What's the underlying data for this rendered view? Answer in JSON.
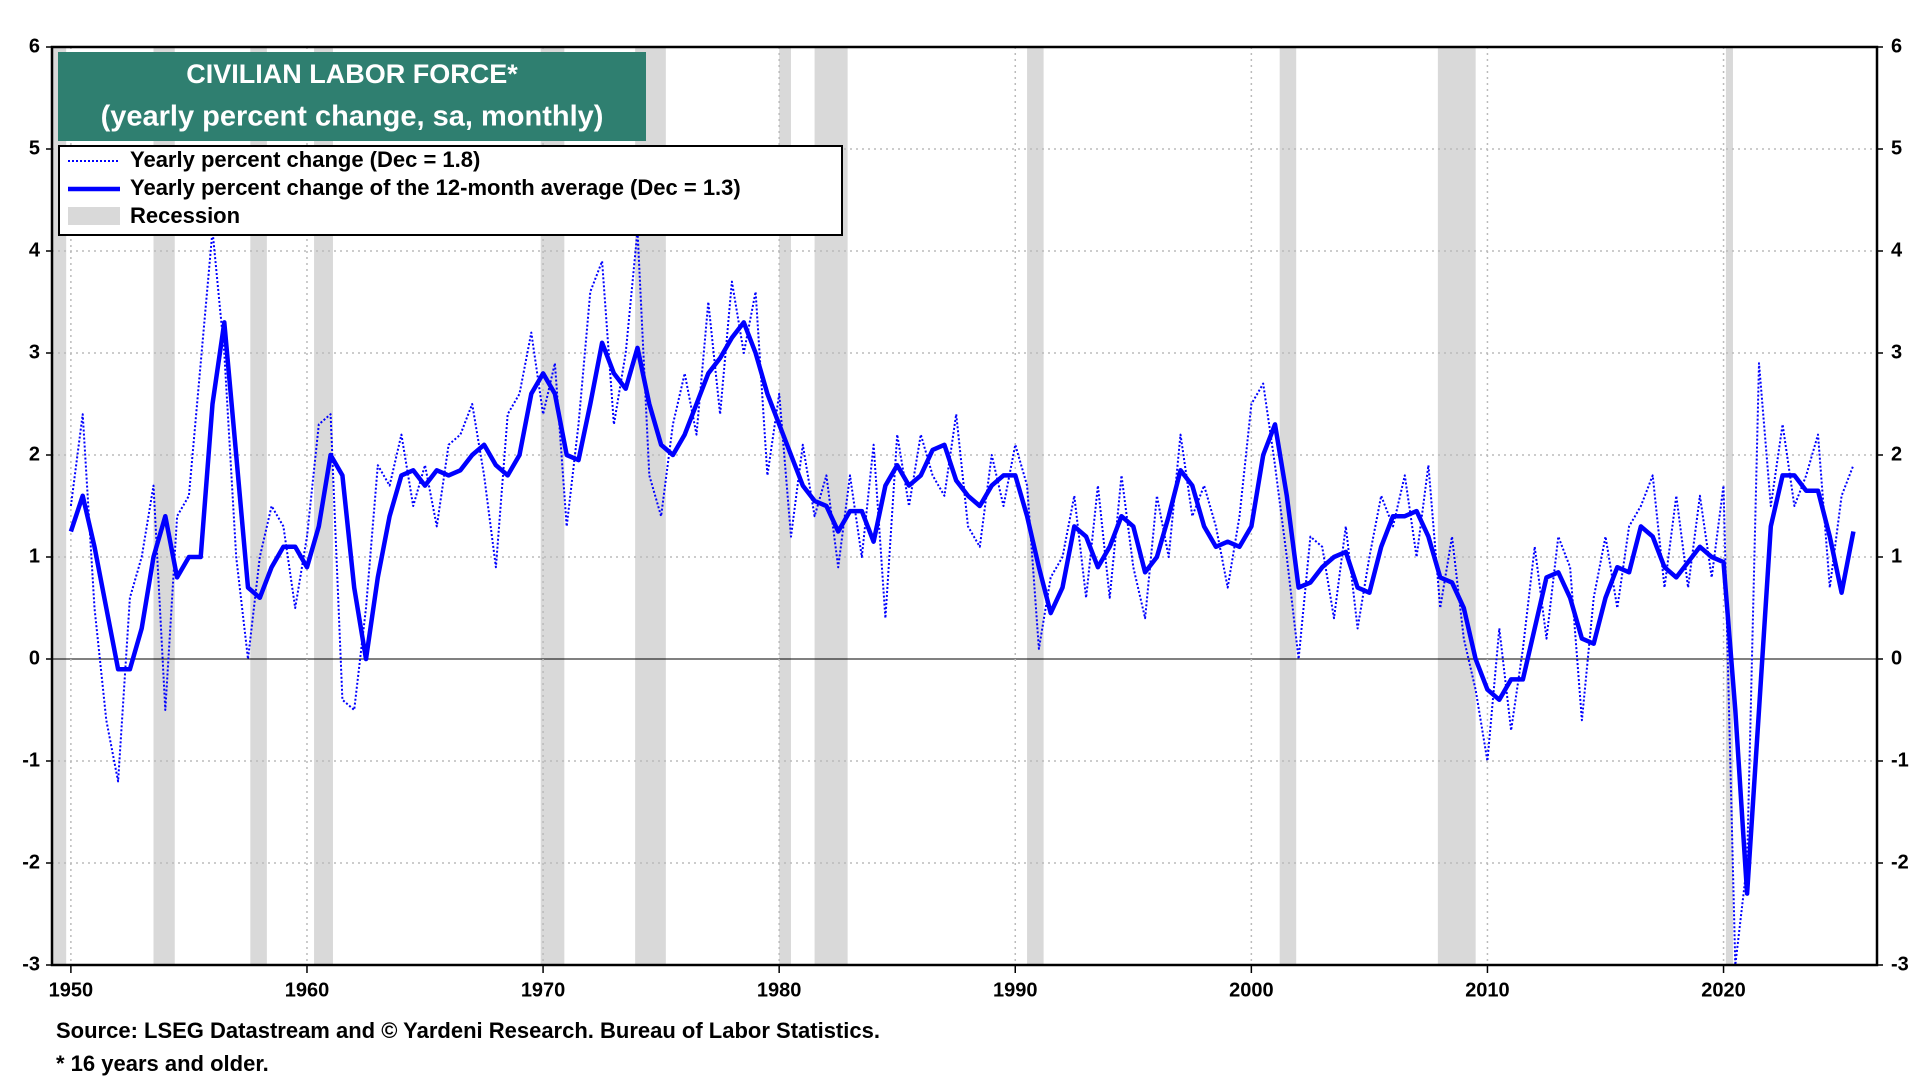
{
  "chart_data": {
    "type": "line",
    "title": [
      "CIVILIAN LABOR FORCE*",
      "(yearly percent change, sa, monthly)"
    ],
    "source": "Source: LSEG Datastream and © Yardeni Research. Bureau of Labor Statistics.",
    "note": "* 16 years and older.",
    "recession_label": "Recession",
    "recession_color": "#d9d9d9",
    "recessions": [
      [
        1948.9,
        1949.8
      ],
      [
        1953.5,
        1954.4
      ],
      [
        1957.6,
        1958.3
      ],
      [
        1960.3,
        1961.1
      ],
      [
        1969.9,
        1970.9
      ],
      [
        1973.9,
        1975.2
      ],
      [
        1980.0,
        1980.5
      ],
      [
        1981.5,
        1982.9
      ],
      [
        1990.5,
        1991.2
      ],
      [
        2001.2,
        2001.9
      ],
      [
        2007.9,
        2009.5
      ],
      [
        2020.1,
        2020.4
      ]
    ],
    "xlim": [
      1949.2,
      2026.5
    ],
    "xticks": [
      1950,
      1960,
      1970,
      1980,
      1990,
      2000,
      2010,
      2020
    ],
    "ylim": [
      -3,
      6
    ],
    "yticks": [
      -3,
      -2,
      -1,
      0,
      1,
      2,
      3,
      4,
      5,
      6
    ],
    "grid": true,
    "legend": "upper left",
    "x": [
      1950.0,
      1950.5,
      1951.0,
      1951.5,
      1952.0,
      1952.5,
      1953.0,
      1953.5,
      1954.0,
      1954.5,
      1955.0,
      1955.5,
      1956.0,
      1956.5,
      1957.0,
      1957.5,
      1958.0,
      1958.5,
      1959.0,
      1959.5,
      1960.0,
      1960.5,
      1961.0,
      1961.5,
      1962.0,
      1962.5,
      1963.0,
      1963.5,
      1964.0,
      1964.5,
      1965.0,
      1965.5,
      1966.0,
      1966.5,
      1967.0,
      1967.5,
      1968.0,
      1968.5,
      1969.0,
      1969.5,
      1970.0,
      1970.5,
      1971.0,
      1971.5,
      1972.0,
      1972.5,
      1973.0,
      1973.5,
      1974.0,
      1974.5,
      1975.0,
      1975.5,
      1976.0,
      1976.5,
      1977.0,
      1977.5,
      1978.0,
      1978.5,
      1979.0,
      1979.5,
      1980.0,
      1980.5,
      1981.0,
      1981.5,
      1982.0,
      1982.5,
      1983.0,
      1983.5,
      1984.0,
      1984.5,
      1985.0,
      1985.5,
      1986.0,
      1986.5,
      1987.0,
      1987.5,
      1988.0,
      1988.5,
      1989.0,
      1989.5,
      1990.0,
      1990.5,
      1991.0,
      1991.5,
      1992.0,
      1992.5,
      1993.0,
      1993.5,
      1994.0,
      1994.5,
      1995.0,
      1995.5,
      1996.0,
      1996.5,
      1997.0,
      1997.5,
      1998.0,
      1998.5,
      1999.0,
      1999.5,
      2000.0,
      2000.5,
      2001.0,
      2001.5,
      2002.0,
      2002.5,
      2003.0,
      2003.5,
      2004.0,
      2004.5,
      2005.0,
      2005.5,
      2006.0,
      2006.5,
      2007.0,
      2007.5,
      2008.0,
      2008.5,
      2009.0,
      2009.5,
      2010.0,
      2010.5,
      2011.0,
      2011.5,
      2012.0,
      2012.5,
      2013.0,
      2013.5,
      2014.0,
      2014.5,
      2015.0,
      2015.5,
      2016.0,
      2016.5,
      2017.0,
      2017.5,
      2018.0,
      2018.5,
      2019.0,
      2019.5,
      2020.0,
      2020.5,
      2021.0,
      2021.5,
      2022.0,
      2022.5,
      2023.0,
      2023.5,
      2024.0,
      2024.5,
      2025.0,
      2025.5
    ],
    "series": [
      {
        "name": "Yearly percent change (Dec = 1.8)",
        "color": "#0000ff",
        "style": "dotted",
        "values": [
          1.5,
          2.4,
          0.5,
          -0.6,
          -1.2,
          0.6,
          1.0,
          1.7,
          -0.5,
          1.4,
          1.6,
          2.9,
          4.2,
          3.0,
          1.0,
          0.0,
          1.0,
          1.5,
          1.3,
          0.5,
          1.2,
          2.3,
          2.4,
          -0.4,
          -0.5,
          0.5,
          1.9,
          1.7,
          2.2,
          1.5,
          1.9,
          1.3,
          2.1,
          2.2,
          2.5,
          1.8,
          0.9,
          2.4,
          2.6,
          3.2,
          2.4,
          2.9,
          1.3,
          2.3,
          3.6,
          3.9,
          2.3,
          3.0,
          4.2,
          1.8,
          1.4,
          2.3,
          2.8,
          2.2,
          3.5,
          2.4,
          3.7,
          3.0,
          3.6,
          1.8,
          2.6,
          1.2,
          2.1,
          1.4,
          1.8,
          0.9,
          1.8,
          1.0,
          2.1,
          0.4,
          2.2,
          1.5,
          2.2,
          1.8,
          1.6,
          2.4,
          1.3,
          1.1,
          2.0,
          1.5,
          2.1,
          1.7,
          0.1,
          0.8,
          1.0,
          1.6,
          0.6,
          1.7,
          0.6,
          1.8,
          0.9,
          0.4,
          1.6,
          1.0,
          2.2,
          1.4,
          1.7,
          1.3,
          0.7,
          1.4,
          2.5,
          2.7,
          1.9,
          1.0,
          0.0,
          1.2,
          1.1,
          0.4,
          1.3,
          0.3,
          1.0,
          1.6,
          1.3,
          1.8,
          1.0,
          1.9,
          0.5,
          1.2,
          0.2,
          -0.3,
          -1.0,
          0.3,
          -0.7,
          0.1,
          1.1,
          0.2,
          1.2,
          0.9,
          -0.6,
          0.6,
          1.2,
          0.5,
          1.3,
          1.5,
          1.8,
          0.7,
          1.6,
          0.7,
          1.6,
          0.8,
          1.7,
          -3.0,
          -2.0,
          2.9,
          1.5,
          2.3,
          1.5,
          1.8,
          2.2,
          0.7,
          1.6,
          1.9
        ]
      },
      {
        "name": "Yearly percent change of the 12-month average (Dec = 1.3)",
        "color": "#0000ff",
        "style": "solid",
        "values": [
          1.25,
          1.6,
          1.1,
          0.5,
          -0.1,
          -0.1,
          0.3,
          1.0,
          1.4,
          0.8,
          1.0,
          1.0,
          2.5,
          3.3,
          2.0,
          0.7,
          0.6,
          0.9,
          1.1,
          1.1,
          0.9,
          1.3,
          2.0,
          1.8,
          0.7,
          0.0,
          0.8,
          1.4,
          1.8,
          1.85,
          1.7,
          1.85,
          1.8,
          1.85,
          2.0,
          2.1,
          1.9,
          1.8,
          2.0,
          2.6,
          2.8,
          2.6,
          2.0,
          1.95,
          2.5,
          3.1,
          2.8,
          2.65,
          3.05,
          2.5,
          2.1,
          2.0,
          2.2,
          2.5,
          2.8,
          2.95,
          3.15,
          3.3,
          3.0,
          2.6,
          2.3,
          2.0,
          1.7,
          1.55,
          1.5,
          1.25,
          1.45,
          1.45,
          1.15,
          1.7,
          1.9,
          1.7,
          1.8,
          2.05,
          2.1,
          1.75,
          1.6,
          1.5,
          1.7,
          1.8,
          1.8,
          1.4,
          0.9,
          0.45,
          0.7,
          1.3,
          1.2,
          0.9,
          1.1,
          1.4,
          1.3,
          0.85,
          1.0,
          1.4,
          1.85,
          1.7,
          1.3,
          1.1,
          1.15,
          1.1,
          1.3,
          2.0,
          2.3,
          1.6,
          0.7,
          0.75,
          0.9,
          1.0,
          1.05,
          0.7,
          0.65,
          1.1,
          1.4,
          1.4,
          1.45,
          1.2,
          0.8,
          0.75,
          0.5,
          0.0,
          -0.3,
          -0.4,
          -0.2,
          -0.2,
          0.3,
          0.8,
          0.85,
          0.6,
          0.2,
          0.15,
          0.6,
          0.9,
          0.85,
          1.3,
          1.2,
          0.9,
          0.8,
          0.95,
          1.1,
          1.0,
          0.95,
          -0.5,
          -2.3,
          -0.5,
          1.3,
          1.8,
          1.8,
          1.65,
          1.65,
          1.2,
          0.65,
          1.25
        ]
      }
    ]
  }
}
